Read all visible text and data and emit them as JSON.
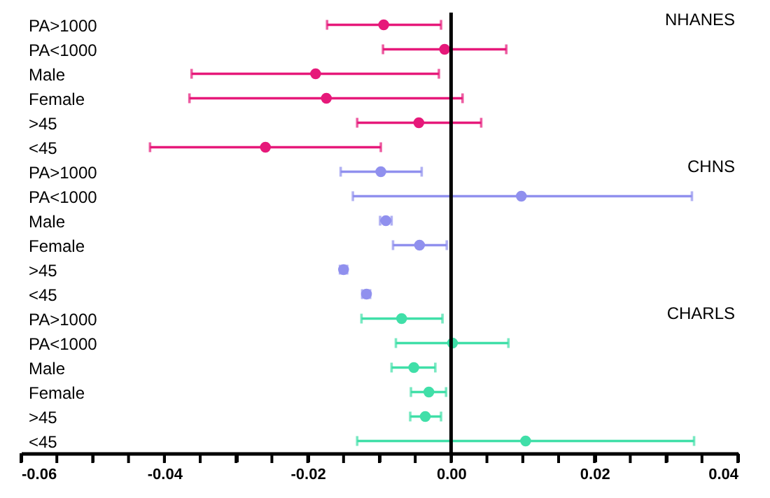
{
  "chart_data": {
    "type": "scatter",
    "orientation": "horizontal",
    "categories": [
      "PA>1000",
      "PA<1000",
      "Male",
      "Female",
      ">45",
      "<45",
      "PA>1000",
      "PA<1000",
      "Male",
      "Female",
      ">45",
      "<45",
      "PA>1000",
      "PA<1000",
      "Male",
      "Female",
      ">45",
      "<45"
    ],
    "xlim": [
      -0.06,
      0.04
    ],
    "xticks": [
      -0.06,
      {
        "value": -0.055,
        "label": null
      },
      {
        "value": -0.05,
        "label": null
      },
      {
        "value": -0.045,
        "label": null
      },
      -0.04,
      {
        "value": -0.035,
        "label": null
      },
      {
        "value": -0.03,
        "label": null
      },
      {
        "value": -0.025,
        "label": null
      },
      -0.02,
      {
        "value": -0.015,
        "label": null
      },
      {
        "value": -0.01,
        "label": null
      },
      {
        "value": -0.005,
        "label": null
      },
      {
        "value": 0,
        "label": "0.00"
      },
      {
        "value": 0.005,
        "label": null
      },
      {
        "value": 0.01,
        "label": null
      },
      {
        "value": 0.015,
        "label": null
      },
      0.02,
      {
        "value": 0.025,
        "label": null
      },
      {
        "value": 0.03,
        "label": null
      },
      {
        "value": 0.035,
        "label": null
      },
      0.04
    ],
    "marker": "circle",
    "ref_lines": [
      {
        "axis": "x",
        "value": 0,
        "color": "#000000"
      }
    ],
    "series": [
      {
        "name": "NHANES",
        "color": "#e6197a",
        "values": [
          -0.0094,
          -0.0009,
          -0.0189,
          -0.0174,
          -0.0045,
          -0.0259,
          null,
          null,
          null,
          null,
          null,
          null,
          null,
          null,
          null,
          null,
          null,
          null
        ],
        "errors": [
          [
            -0.0173,
            -0.0014
          ],
          [
            -0.0095,
            0.0077
          ],
          [
            -0.0362,
            -0.0017
          ],
          [
            -0.0365,
            0.0016
          ],
          [
            -0.0131,
            0.0042
          ],
          [
            -0.042,
            -0.0098
          ],
          null,
          null,
          null,
          null,
          null,
          null,
          null,
          null,
          null,
          null,
          null,
          null
        ]
      },
      {
        "name": "CHNS",
        "color": "#9090ee",
        "values": [
          null,
          null,
          null,
          null,
          null,
          null,
          -0.0098,
          0.0098,
          -0.0091,
          -0.0044,
          -0.015,
          -0.0118,
          null,
          null,
          null,
          null,
          null,
          null
        ],
        "errors": [
          null,
          null,
          null,
          null,
          null,
          null,
          [
            -0.0154,
            -0.0041
          ],
          [
            -0.0137,
            0.0336
          ],
          [
            -0.0099,
            -0.0083
          ],
          [
            -0.0081,
            -0.0006
          ],
          [
            -0.0155,
            -0.0145
          ],
          [
            -0.0124,
            -0.0113
          ],
          null,
          null,
          null,
          null,
          null,
          null
        ]
      },
      {
        "name": "CHARLS",
        "color": "#40dfa8",
        "values": [
          null,
          null,
          null,
          null,
          null,
          null,
          null,
          null,
          null,
          null,
          null,
          null,
          -0.0069,
          0.0002,
          -0.0052,
          -0.0031,
          -0.0036,
          0.0104
        ],
        "errors": [
          null,
          null,
          null,
          null,
          null,
          null,
          null,
          null,
          null,
          null,
          null,
          null,
          [
            -0.0125,
            -0.0012
          ],
          [
            -0.0077,
            0.008
          ],
          [
            -0.0083,
            -0.0022
          ],
          [
            -0.0056,
            -0.0007
          ],
          [
            -0.0057,
            -0.0014
          ],
          [
            -0.0131,
            0.0339
          ]
        ]
      }
    ]
  }
}
